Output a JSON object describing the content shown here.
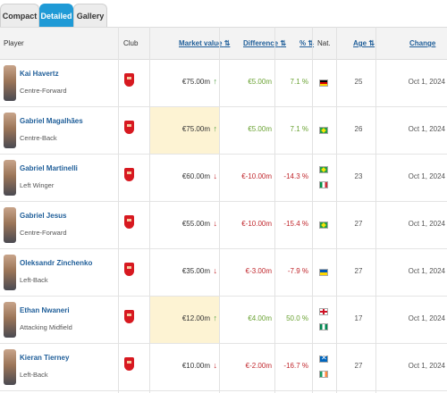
{
  "tabs": [
    {
      "label": "Compact",
      "active": false
    },
    {
      "label": "Detailed",
      "active": true
    },
    {
      "label": "Gallery",
      "active": false
    }
  ],
  "columns": {
    "player": "Player",
    "club": "Club",
    "market_value": "Market value",
    "difference": "Difference",
    "percent": "%",
    "nat": "Nat.",
    "age": "Age",
    "change_from": "Change from"
  },
  "sort_icon": "⇅",
  "colors": {
    "accent": "#1f9ad6",
    "link": "#1f5e99",
    "positive": "#6aa233",
    "negative": "#c0272d",
    "highlight": "#fdf3d3"
  },
  "players": [
    {
      "name": "Kai Havertz",
      "position": "Centre-Forward",
      "market_value": "€75.00m",
      "trend": "up",
      "difference": "€5.00m",
      "percent": "7.1 %",
      "flags": [
        "germany-flag"
      ],
      "age": "25",
      "change_from": "Oct 1, 2024",
      "highlight": false
    },
    {
      "name": "Gabriel Magalhães",
      "position": "Centre-Back",
      "market_value": "€75.00m",
      "trend": "up",
      "difference": "€5.00m",
      "percent": "7.1 %",
      "flags": [
        "brazil-flag"
      ],
      "age": "26",
      "change_from": "Oct 1, 2024",
      "highlight": true
    },
    {
      "name": "Gabriel Martinelli",
      "position": "Left Winger",
      "market_value": "€60.00m",
      "trend": "down",
      "difference": "€-10.00m",
      "percent": "-14.3 %",
      "flags": [
        "brazil-flag",
        "italy-flag"
      ],
      "age": "23",
      "change_from": "Oct 1, 2024",
      "highlight": false
    },
    {
      "name": "Gabriel Jesus",
      "position": "Centre-Forward",
      "market_value": "€55.00m",
      "trend": "down",
      "difference": "€-10.00m",
      "percent": "-15.4 %",
      "flags": [
        "brazil-flag"
      ],
      "age": "27",
      "change_from": "Oct 1, 2024",
      "highlight": false
    },
    {
      "name": "Oleksandr Zinchenko",
      "position": "Left-Back",
      "market_value": "€35.00m",
      "trend": "down",
      "difference": "€-3.00m",
      "percent": "-7.9 %",
      "flags": [
        "ukraine-flag"
      ],
      "age": "27",
      "change_from": "Oct 1, 2024",
      "highlight": false
    },
    {
      "name": "Ethan Nwaneri",
      "position": "Attacking Midfield",
      "market_value": "€12.00m",
      "trend": "up",
      "difference": "€4.00m",
      "percent": "50.0 %",
      "flags": [
        "england-flag",
        "nigeria-flag"
      ],
      "age": "17",
      "change_from": "Oct 1, 2024",
      "highlight": true
    },
    {
      "name": "Kieran Tierney",
      "position": "Left-Back",
      "market_value": "€10.00m",
      "trend": "down",
      "difference": "€-2.00m",
      "percent": "-16.7 %",
      "flags": [
        "scotland-flag",
        "ireland-flag"
      ],
      "age": "27",
      "change_from": "Oct 1, 2024",
      "highlight": false
    }
  ]
}
